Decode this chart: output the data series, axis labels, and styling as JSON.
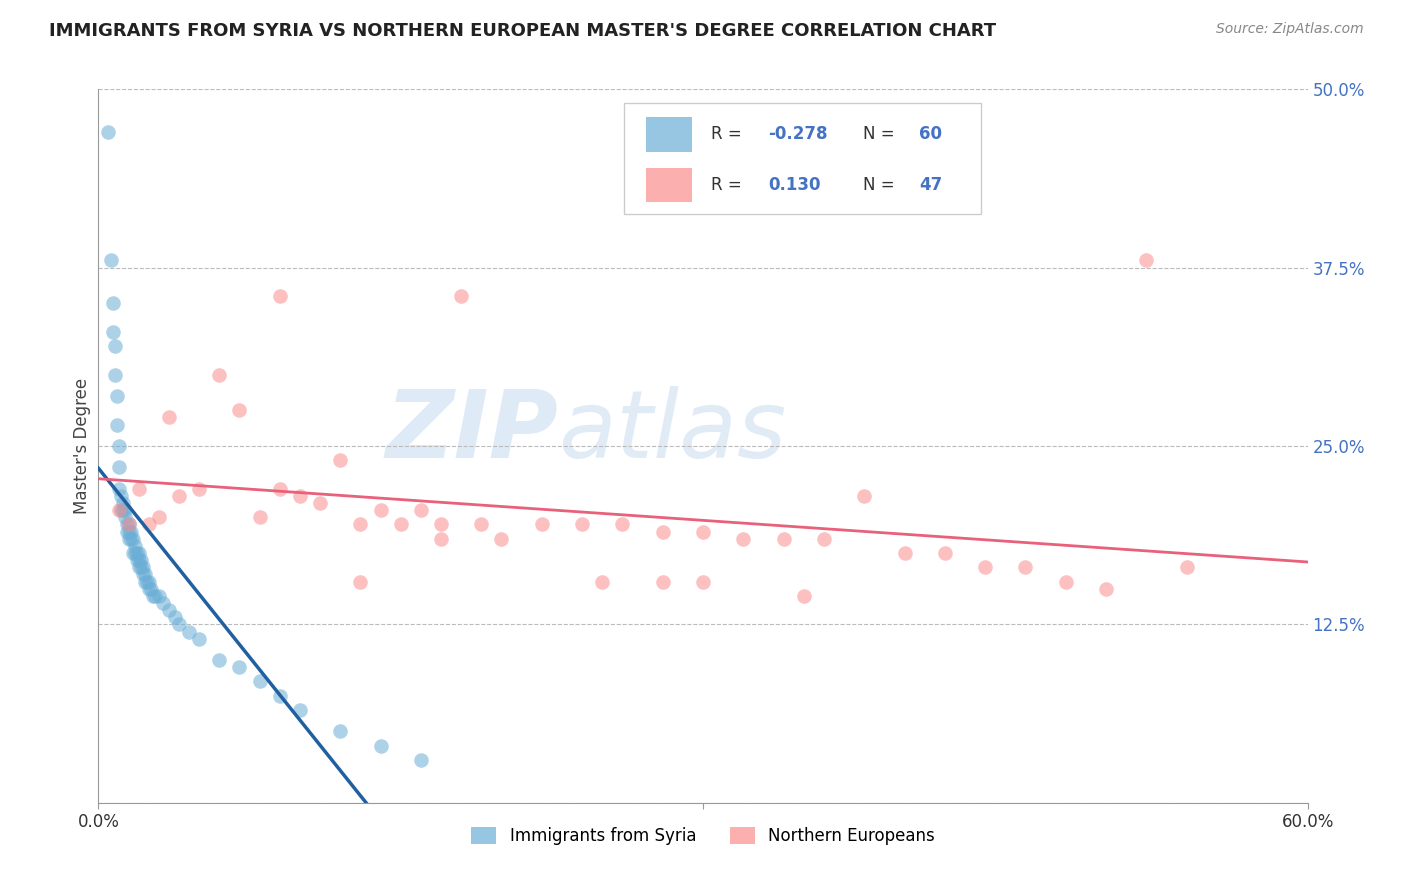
{
  "title": "IMMIGRANTS FROM SYRIA VS NORTHERN EUROPEAN MASTER'S DEGREE CORRELATION CHART",
  "source": "Source: ZipAtlas.com",
  "ylabel": "Master's Degree",
  "xlim": [
    0.0,
    0.6
  ],
  "ylim": [
    0.0,
    0.5
  ],
  "yticks_right": [
    0.0,
    0.125,
    0.25,
    0.375,
    0.5
  ],
  "yticklabels_right": [
    "",
    "12.5%",
    "25.0%",
    "37.5%",
    "50.0%"
  ],
  "blue_r": -0.278,
  "blue_n": 60,
  "pink_r": 0.13,
  "pink_n": 47,
  "blue_color": "#6baed6",
  "pink_color": "#fc8d8d",
  "blue_line_color": "#2060a0",
  "pink_line_color": "#e8607a",
  "legend_label_blue": "Immigrants from Syria",
  "legend_label_pink": "Northern Europeans",
  "watermark_zip": "ZIP",
  "watermark_atlas": "atlas",
  "background_color": "#ffffff",
  "grid_color": "#bbbbbb",
  "blue_x": [
    0.005,
    0.006,
    0.007,
    0.007,
    0.008,
    0.008,
    0.009,
    0.009,
    0.01,
    0.01,
    0.01,
    0.011,
    0.011,
    0.012,
    0.012,
    0.013,
    0.013,
    0.014,
    0.014,
    0.015,
    0.015,
    0.015,
    0.016,
    0.016,
    0.017,
    0.017,
    0.018,
    0.018,
    0.019,
    0.019,
    0.02,
    0.02,
    0.02,
    0.021,
    0.021,
    0.022,
    0.022,
    0.023,
    0.023,
    0.024,
    0.025,
    0.025,
    0.026,
    0.027,
    0.028,
    0.03,
    0.032,
    0.035,
    0.038,
    0.04,
    0.045,
    0.05,
    0.06,
    0.07,
    0.08,
    0.09,
    0.1,
    0.12,
    0.14,
    0.16
  ],
  "blue_y": [
    0.47,
    0.38,
    0.35,
    0.33,
    0.32,
    0.3,
    0.285,
    0.265,
    0.25,
    0.235,
    0.22,
    0.215,
    0.205,
    0.205,
    0.21,
    0.205,
    0.2,
    0.195,
    0.19,
    0.195,
    0.19,
    0.185,
    0.185,
    0.19,
    0.185,
    0.175,
    0.18,
    0.175,
    0.17,
    0.175,
    0.175,
    0.17,
    0.165,
    0.165,
    0.17,
    0.165,
    0.16,
    0.16,
    0.155,
    0.155,
    0.155,
    0.15,
    0.15,
    0.145,
    0.145,
    0.145,
    0.14,
    0.135,
    0.13,
    0.125,
    0.12,
    0.115,
    0.1,
    0.095,
    0.085,
    0.075,
    0.065,
    0.05,
    0.04,
    0.03
  ],
  "pink_x": [
    0.01,
    0.015,
    0.02,
    0.025,
    0.03,
    0.035,
    0.04,
    0.05,
    0.06,
    0.07,
    0.08,
    0.09,
    0.1,
    0.11,
    0.12,
    0.13,
    0.14,
    0.15,
    0.16,
    0.17,
    0.18,
    0.19,
    0.2,
    0.22,
    0.24,
    0.26,
    0.28,
    0.3,
    0.32,
    0.34,
    0.36,
    0.38,
    0.4,
    0.42,
    0.44,
    0.46,
    0.48,
    0.5,
    0.52,
    0.54,
    0.3,
    0.35,
    0.28,
    0.13,
    0.09,
    0.17,
    0.25
  ],
  "pink_y": [
    0.205,
    0.195,
    0.22,
    0.195,
    0.2,
    0.27,
    0.215,
    0.22,
    0.3,
    0.275,
    0.2,
    0.22,
    0.215,
    0.21,
    0.24,
    0.195,
    0.205,
    0.195,
    0.205,
    0.195,
    0.355,
    0.195,
    0.185,
    0.195,
    0.195,
    0.195,
    0.19,
    0.19,
    0.185,
    0.185,
    0.185,
    0.215,
    0.175,
    0.175,
    0.165,
    0.165,
    0.155,
    0.15,
    0.38,
    0.165,
    0.155,
    0.145,
    0.155,
    0.155,
    0.355,
    0.185,
    0.155
  ]
}
